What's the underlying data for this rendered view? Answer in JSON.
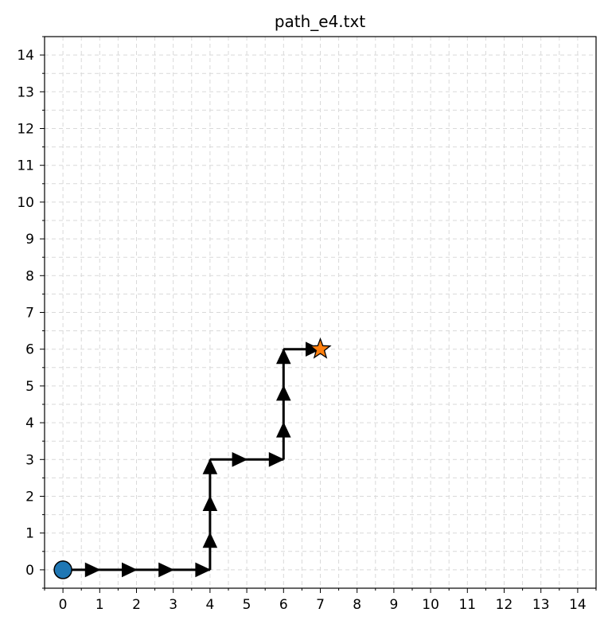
{
  "chart_data": {
    "type": "line",
    "title": "path_e4.txt",
    "xlabel": "",
    "ylabel": "",
    "xlim": [
      -0.5,
      14.5
    ],
    "ylim": [
      -0.5,
      14.5
    ],
    "x_ticks": [
      "0",
      "1",
      "2",
      "3",
      "4",
      "5",
      "6",
      "7",
      "8",
      "9",
      "10",
      "11",
      "12",
      "13",
      "14"
    ],
    "y_ticks": [
      "0",
      "1",
      "2",
      "3",
      "4",
      "5",
      "6",
      "7",
      "8",
      "9",
      "10",
      "11",
      "12",
      "13",
      "14"
    ],
    "grid": true,
    "path": [
      [
        0,
        0
      ],
      [
        1,
        0
      ],
      [
        2,
        0
      ],
      [
        3,
        0
      ],
      [
        4,
        0
      ],
      [
        4,
        1
      ],
      [
        4,
        2
      ],
      [
        4,
        3
      ],
      [
        5,
        3
      ],
      [
        6,
        3
      ],
      [
        6,
        4
      ],
      [
        6,
        5
      ],
      [
        6,
        6
      ],
      [
        7,
        6
      ]
    ],
    "start": {
      "x": 0,
      "y": 0,
      "marker": "circle",
      "color": "#1f77b4"
    },
    "goal": {
      "x": 7,
      "y": 6,
      "marker": "star",
      "color": "#ff7f0e"
    },
    "path_color": "#000000"
  }
}
